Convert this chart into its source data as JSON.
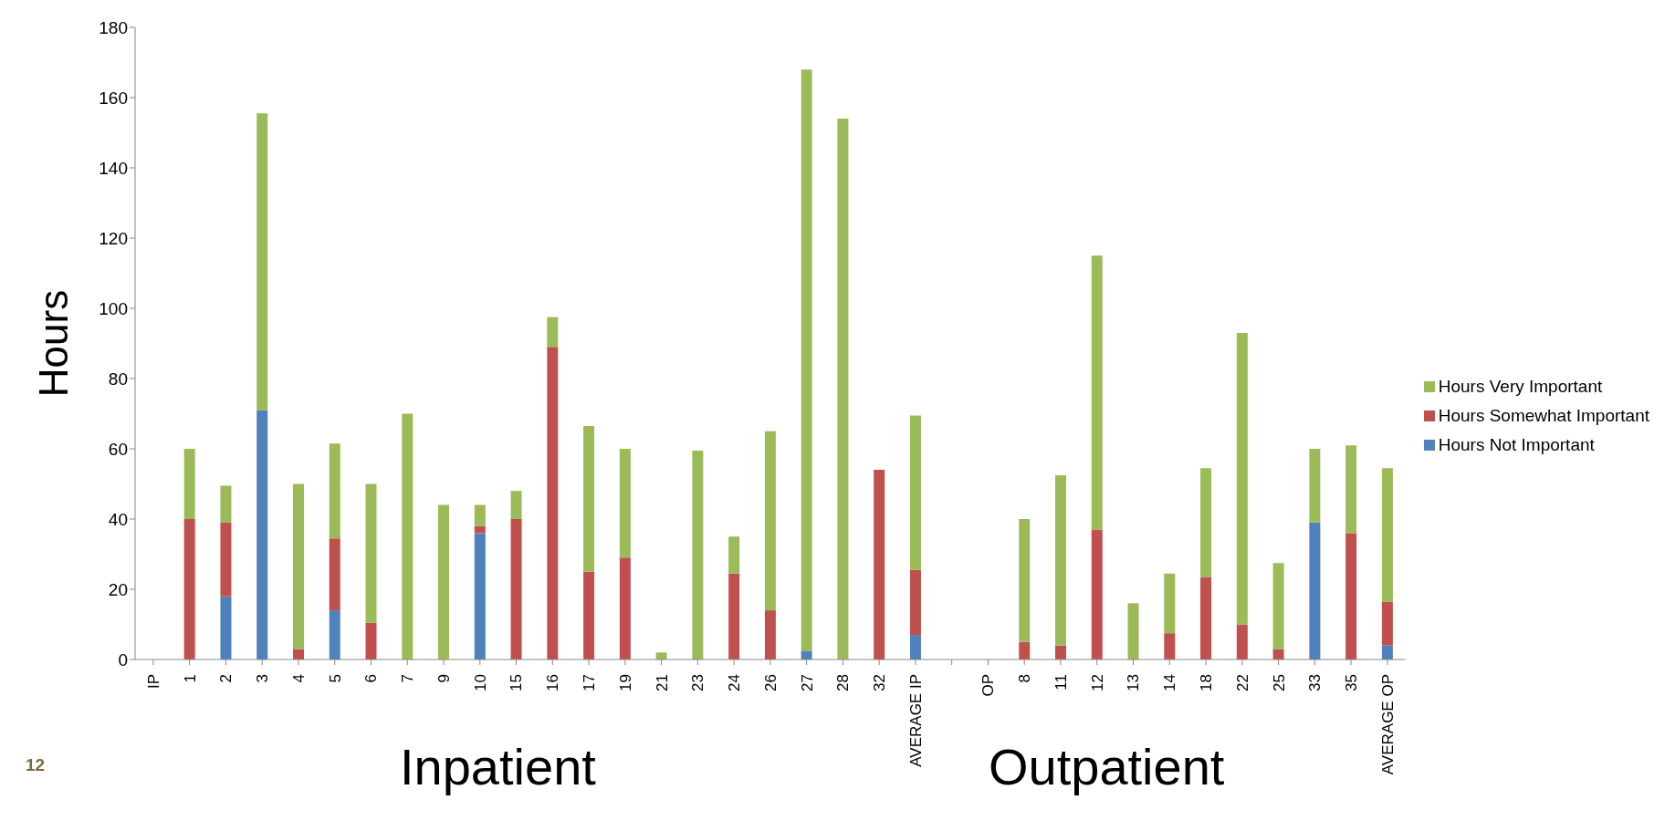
{
  "chart_data": {
    "type": "bar",
    "stacked": true,
    "ylabel": "Hours",
    "categories": [
      "IP",
      "1",
      "2",
      "3",
      "4",
      "5",
      "6",
      "7",
      "9",
      "10",
      "15",
      "16",
      "17",
      "19",
      "21",
      "23",
      "24",
      "26",
      "27",
      "28",
      "32",
      "AVERAGE IP",
      null,
      "OP",
      "8",
      "11",
      "12",
      "13",
      "14",
      "18",
      "22",
      "25",
      "33",
      "35",
      "AVERAGE OP"
    ],
    "series": [
      {
        "name": "Hours Not Important",
        "color": "#4f81bd",
        "values": [
          0,
          0,
          18,
          71,
          0,
          14,
          0,
          0,
          0,
          36,
          0,
          0,
          0,
          0,
          0,
          0,
          0,
          0,
          2.5,
          0,
          0,
          7,
          0,
          0,
          0,
          0,
          0,
          0,
          0,
          0,
          0,
          0,
          39,
          0,
          4
        ]
      },
      {
        "name": "Hours Somewhat Important",
        "color": "#c0504d",
        "values": [
          0,
          40,
          21,
          0,
          3,
          20.5,
          10.5,
          0,
          0,
          2,
          40,
          89,
          25,
          29,
          0,
          0,
          24.5,
          14,
          0,
          0,
          54,
          18.5,
          0,
          0,
          5,
          4,
          37,
          0,
          7.5,
          23.5,
          10,
          3,
          0,
          36,
          12.5
        ]
      },
      {
        "name": "Hours Very Important",
        "color": "#9bbb59",
        "values": [
          0,
          20,
          10.5,
          84.5,
          47,
          27,
          39.5,
          70,
          44,
          6,
          8,
          8.5,
          41.5,
          31,
          2,
          59.5,
          10.5,
          51,
          165.5,
          154,
          0,
          44,
          0,
          0,
          35,
          48.5,
          78,
          16,
          17,
          31,
          83,
          24.5,
          21,
          25,
          38
        ]
      }
    ],
    "ylim": [
      0,
      180
    ],
    "yticks": [
      0,
      20,
      40,
      60,
      80,
      100,
      120,
      140,
      160,
      180
    ],
    "grid": false,
    "legend": "right",
    "annotations": [
      "Inpatient",
      "Outpatient",
      "12"
    ]
  }
}
